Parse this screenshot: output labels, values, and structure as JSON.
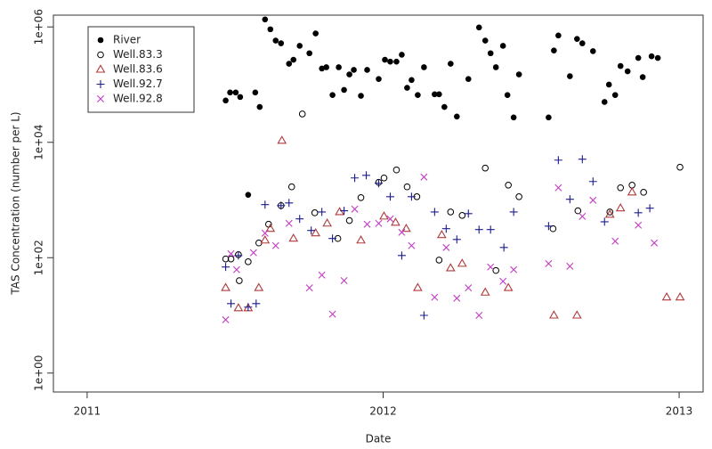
{
  "chart_data": {
    "type": "scatter",
    "xlabel": "Date",
    "ylabel": "TAS Concentration (number per L)",
    "log_y": true,
    "legend": "top-left",
    "xlim": [
      2010.886,
      2013.081
    ],
    "xticks": [
      2011,
      2012,
      2013
    ],
    "ylim": [
      0.47,
      1600000
    ],
    "yticks": [
      {
        "value": 1,
        "label": "1e+00"
      },
      {
        "value": 100,
        "label": "1e+02"
      },
      {
        "value": 10000,
        "label": "1e+04"
      },
      {
        "value": 1000000,
        "label": "1e+06"
      }
    ],
    "series": [
      {
        "name": "River",
        "color": "#000000",
        "marker": "filled-circle",
        "x": [
          2011.468,
          2011.483,
          2011.502,
          2011.517,
          2011.544,
          2011.568,
          2011.583,
          2011.601,
          2011.619,
          2011.637,
          2011.655,
          2011.682,
          2011.697,
          2011.718,
          2011.751,
          2011.772,
          2011.793,
          2011.808,
          2011.829,
          2011.85,
          2011.868,
          2011.886,
          2011.901,
          2011.925,
          2011.946,
          2011.985,
          2012.006,
          2012.024,
          2012.045,
          2012.063,
          2012.081,
          2012.096,
          2012.117,
          2012.138,
          2012.174,
          2012.189,
          2012.207,
          2012.228,
          2012.249,
          2012.288,
          2012.324,
          2012.345,
          2012.363,
          2012.381,
          2012.405,
          2012.42,
          2012.441,
          2012.459,
          2012.559,
          2012.577,
          2012.592,
          2012.631,
          2012.655,
          2012.673,
          2012.709,
          2012.748,
          2012.763,
          2012.784,
          2012.802,
          2012.826,
          2012.862,
          2012.877,
          2012.907,
          2012.928
        ],
        "values": [
          53000,
          73000,
          73000,
          61000,
          1230,
          73000,
          41000,
          1350000,
          910000,
          580000,
          520000,
          230000,
          270000,
          470000,
          350000,
          770000,
          190000,
          200000,
          66000,
          200000,
          81000,
          150000,
          180000,
          64000,
          180000,
          125000,
          270000,
          250000,
          250000,
          330000,
          88000,
          120000,
          66000,
          200000,
          68000,
          68000,
          41000,
          230000,
          28000,
          125000,
          980000,
          580000,
          350000,
          200000,
          470000,
          66000,
          27000,
          150000,
          27000,
          390000,
          710000,
          140000,
          620000,
          520000,
          380000,
          50000,
          100000,
          66000,
          210000,
          170000,
          290000,
          135000,
          310000,
          290000
        ]
      },
      {
        "name": "Well.83.3",
        "color": "#000000",
        "marker": "open-circle",
        "x": [
          2011.468,
          2011.486,
          2011.511,
          2011.514,
          2011.544,
          2011.58,
          2011.613,
          2011.655,
          2011.691,
          2011.727,
          2011.769,
          2011.847,
          2011.886,
          2011.925,
          2011.985,
          2012.003,
          2012.045,
          2012.081,
          2012.114,
          2012.189,
          2012.228,
          2012.267,
          2012.345,
          2012.381,
          2012.423,
          2012.459,
          2012.574,
          2012.658,
          2012.766,
          2012.802,
          2012.841,
          2012.88,
          2013.003
        ],
        "values": [
          95,
          95,
          113,
          40,
          85,
          180,
          380,
          800,
          1690,
          31000,
          600,
          215,
          440,
          1100,
          2020,
          2410,
          3320,
          1690,
          1140,
          91,
          620,
          540,
          3570,
          60,
          1810,
          1140,
          318,
          650,
          620,
          1630,
          1810,
          1360,
          3700
        ]
      },
      {
        "name": "Well.83.6",
        "color": "#b03a3a",
        "marker": "triangle",
        "x": [
          2011.468,
          2011.511,
          2011.544,
          2011.58,
          2011.601,
          2011.619,
          2011.658,
          2011.697,
          2011.772,
          2011.811,
          2011.853,
          2011.925,
          2012.003,
          2012.042,
          2012.078,
          2012.117,
          2012.198,
          2012.228,
          2012.267,
          2012.345,
          2012.423,
          2012.577,
          2012.655,
          2012.766,
          2012.802,
          2012.841,
          2012.958,
          2013.003
        ],
        "values": [
          30,
          13.4,
          13.4,
          30,
          200,
          318,
          10700,
          215,
          266,
          393,
          620,
          200,
          520,
          407,
          318,
          30,
          248,
          66,
          79,
          25,
          30,
          10,
          10,
          560,
          720,
          1360,
          20.6,
          20.6
        ]
      },
      {
        "name": "Well.92.7",
        "color": "#1c1c8c",
        "marker": "plus",
        "x": [
          2011.468,
          2011.486,
          2011.511,
          2011.544,
          2011.571,
          2011.601,
          2011.655,
          2011.682,
          2011.718,
          2011.757,
          2011.793,
          2011.829,
          2011.868,
          2011.904,
          2011.943,
          2011.985,
          2012.024,
          2012.063,
          2012.096,
          2012.138,
          2012.174,
          2012.213,
          2012.249,
          2012.288,
          2012.324,
          2012.363,
          2012.408,
          2012.441,
          2012.559,
          2012.592,
          2012.631,
          2012.673,
          2012.709,
          2012.748,
          2012.862,
          2012.901
        ],
        "values": [
          69,
          16,
          109,
          13.9,
          16,
          830,
          800,
          890,
          470,
          296,
          620,
          215,
          650,
          2410,
          2680,
          1950,
          1140,
          109,
          1140,
          10,
          620,
          318,
          207,
          580,
          307,
          307,
          150,
          620,
          353,
          4910,
          1030,
          5090,
          2090,
          420,
          600,
          720
        ]
      },
      {
        "name": "Well.92.8",
        "color": "#c23cc2",
        "marker": "cross",
        "x": [
          2011.468,
          2011.486,
          2011.505,
          2011.562,
          2011.601,
          2011.637,
          2011.682,
          2011.751,
          2011.793,
          2011.829,
          2011.868,
          2011.904,
          2011.946,
          2011.985,
          2012.024,
          2012.063,
          2012.096,
          2012.138,
          2012.174,
          2012.213,
          2012.249,
          2012.288,
          2012.324,
          2012.363,
          2012.405,
          2012.441,
          2012.559,
          2012.592,
          2012.631,
          2012.673,
          2012.709,
          2012.784,
          2012.862,
          2012.916
        ],
        "values": [
          8.4,
          117,
          62,
          122,
          266,
          162,
          393,
          30,
          50,
          10.5,
          40,
          695,
          380,
          393,
          470,
          275,
          162,
          2500,
          20.6,
          150,
          19.8,
          30,
          10,
          69,
          39,
          62,
          79,
          1630,
          71,
          520,
          990,
          193,
          366,
          180
        ]
      }
    ]
  }
}
